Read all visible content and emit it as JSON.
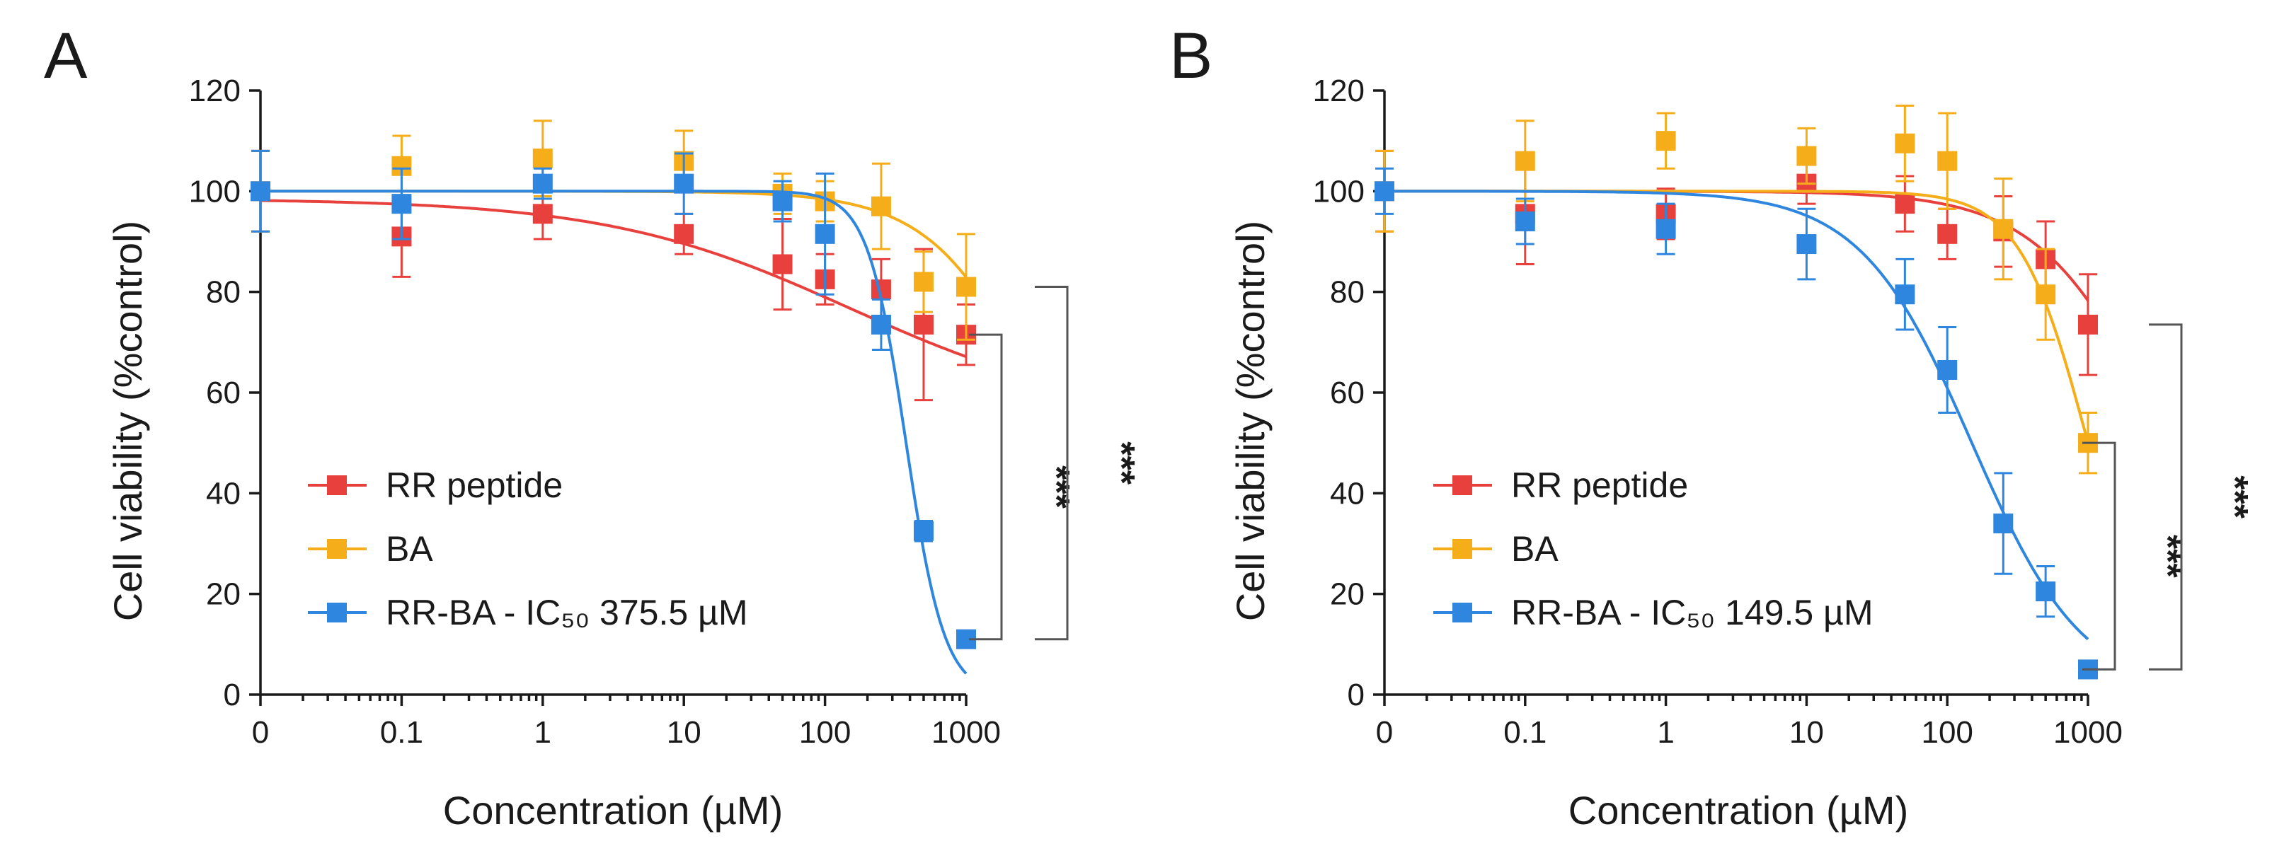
{
  "chart_data": [
    {
      "type": "scatter",
      "panel": "A",
      "xlabel": "Concentration (µM)",
      "ylabel": "Cell viability (%control)",
      "x_tick_labels": [
        "0",
        "0.1",
        "1",
        "10",
        "100",
        "1000"
      ],
      "x_tick_values": [
        0.01,
        0.1,
        1,
        10,
        100,
        1000
      ],
      "y_tick_labels": [
        "0",
        "20",
        "40",
        "60",
        "80",
        "100",
        "120"
      ],
      "ylim": [
        0,
        120
      ],
      "x_scale": "log",
      "series": [
        {
          "name": "RR peptide",
          "color": "#e8413d",
          "x": [
            0.01,
            0.1,
            1,
            10,
            50,
            100,
            250,
            500,
            1000
          ],
          "values": [
            100,
            91,
            95.5,
            91.5,
            85.5,
            82.5,
            80.5,
            73.5,
            71.5
          ],
          "error": [
            8,
            8,
            5,
            4,
            9,
            5,
            6,
            15,
            6
          ],
          "fit": {
            "kind": "hill",
            "top": 98.5,
            "bottom": 55,
            "ic50": 150,
            "hill": 0.5
          }
        },
        {
          "name": "BA",
          "color": "#f5ad19",
          "x": [
            0.01,
            0.1,
            1,
            10,
            50,
            100,
            250,
            500,
            1000
          ],
          "values": [
            100,
            105,
            106.5,
            106,
            99.5,
            98,
            97,
            82,
            81
          ],
          "error": [
            8,
            6,
            7.5,
            6,
            4,
            4,
            8.5,
            6,
            10.5
          ],
          "fit": {
            "kind": "hill",
            "top": 100,
            "bottom": 0,
            "ic50": 4200,
            "hill": 1.1
          }
        },
        {
          "name": "RR-BA - IC₅₀ 375.5 µM",
          "color": "#2e86de",
          "x": [
            0.01,
            0.1,
            1,
            10,
            50,
            100,
            250,
            500,
            1000
          ],
          "values": [
            100,
            97.5,
            101.5,
            101.5,
            98,
            91.5,
            73.5,
            32.5,
            11
          ],
          "error": [
            8,
            7,
            3,
            6,
            4,
            12,
            5,
            2,
            1
          ],
          "fit": {
            "kind": "hill",
            "top": 100,
            "bottom": 0,
            "ic50": 375.5,
            "hill": 3.2
          }
        }
      ],
      "significance": [
        {
          "label": "***",
          "from_y": 71.5,
          "to_y": 11
        },
        {
          "label": "***",
          "from_y": 81,
          "to_y": 11
        }
      ],
      "legend_position": "lower-left"
    },
    {
      "type": "scatter",
      "panel": "B",
      "xlabel": "Concentration (µM)",
      "ylabel": "Cell viability (%control)",
      "x_tick_labels": [
        "0",
        "0.1",
        "1",
        "10",
        "100",
        "1000"
      ],
      "x_tick_values": [
        0.01,
        0.1,
        1,
        10,
        100,
        1000
      ],
      "y_tick_labels": [
        "0",
        "20",
        "40",
        "60",
        "80",
        "100",
        "120"
      ],
      "ylim": [
        0,
        120
      ],
      "x_scale": "log",
      "series": [
        {
          "name": "RR peptide",
          "color": "#e8413d",
          "x": [
            0.01,
            0.1,
            1,
            10,
            50,
            100,
            250,
            500,
            1000
          ],
          "values": [
            100,
            95.5,
            95.5,
            101.5,
            97.5,
            91.5,
            92,
            86.5,
            73.5
          ],
          "error": [
            8,
            10,
            5,
            4,
            5.5,
            5,
            7,
            7.5,
            10
          ],
          "fit": {
            "kind": "hill",
            "top": 100,
            "bottom": 0,
            "ic50": 3600,
            "hill": 1.0
          }
        },
        {
          "name": "BA",
          "color": "#f5ad19",
          "x": [
            0.01,
            0.1,
            1,
            10,
            50,
            100,
            250,
            500,
            1000
          ],
          "values": [
            100,
            106,
            110,
            107,
            109.5,
            106,
            92.5,
            79.5,
            50
          ],
          "error": [
            8,
            8,
            5.5,
            5.5,
            7.5,
            9.5,
            10,
            9,
            6
          ],
          "fit": {
            "kind": "hill",
            "top": 100,
            "bottom": 0,
            "ic50": 1000,
            "hill": 1.8
          }
        },
        {
          "name": "RR-BA - IC₅₀ 149.5 µM",
          "color": "#2e86de",
          "x": [
            0.01,
            0.1,
            1,
            10,
            50,
            100,
            250,
            500,
            1000
          ],
          "values": [
            100,
            94,
            92.5,
            89.5,
            79.5,
            64.5,
            34,
            20.5,
            5
          ],
          "error": [
            4.5,
            4.5,
            5,
            7,
            7,
            8.5,
            10,
            5,
            1
          ],
          "fit": {
            "kind": "hill",
            "top": 100,
            "bottom": 0,
            "ic50": 149.5,
            "hill": 1.1
          }
        }
      ],
      "significance": [
        {
          "label": "***",
          "from_y": 50,
          "to_y": 5
        },
        {
          "label": "***",
          "from_y": 73.5,
          "to_y": 5
        }
      ],
      "legend_position": "lower-left"
    }
  ]
}
